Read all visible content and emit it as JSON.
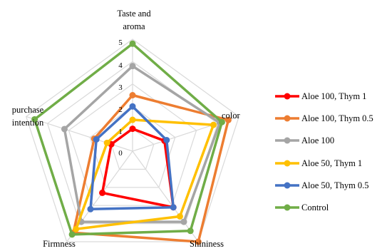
{
  "chart_data": {
    "type": "radar",
    "axes": [
      "Taste and aroma",
      "color",
      "Shininess",
      "Firmness",
      "purchase intention"
    ],
    "range": [
      0,
      5
    ],
    "ticks": [
      0,
      1,
      2,
      3,
      4,
      5
    ],
    "grid": true,
    "legend_position": "right",
    "series": [
      {
        "name": "Aloe 100, Thym 1",
        "color": "#ff0000",
        "values": [
          1.0,
          1.5,
          3.1,
          2.3,
          1.0
        ]
      },
      {
        "name": "Aloe 100, Thym 0.5",
        "color": "#ed7d31",
        "values": [
          2.5,
          4.5,
          5.0,
          4.5,
          1.8
        ]
      },
      {
        "name": "Aloe 100",
        "color": "#a5a5a5",
        "values": [
          3.8,
          4.1,
          3.9,
          3.9,
          3.2
        ]
      },
      {
        "name": "Aloe 50, Thym 1",
        "color": "#ffc000",
        "values": [
          1.4,
          3.8,
          3.6,
          4.3,
          1.2
        ]
      },
      {
        "name": "Aloe 50, Thym 0.5",
        "color": "#4472c4",
        "values": [
          2.0,
          1.6,
          3.1,
          3.2,
          1.7
        ]
      },
      {
        "name": "Control",
        "color": "#70ad47",
        "values": [
          4.8,
          4.2,
          4.4,
          4.6,
          4.6
        ]
      }
    ]
  }
}
